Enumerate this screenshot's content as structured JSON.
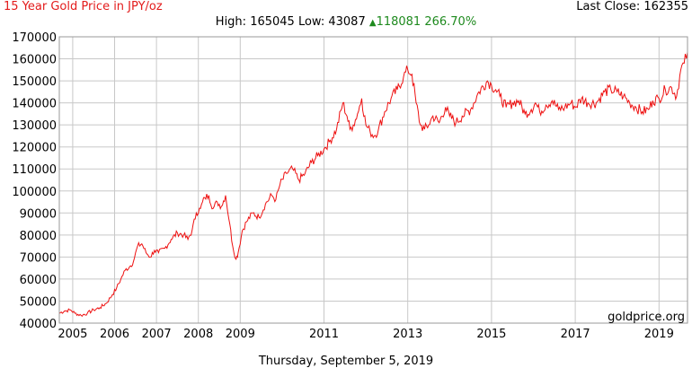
{
  "header": {
    "title": "15 Year Gold Price in JPY/oz",
    "last_close": "Last Close: 162355",
    "high": "High: 165045",
    "low": "Low: 43087",
    "change_arrow": "▲",
    "change": "118081 266.70%"
  },
  "watermark": "goldprice.org",
  "footer_date": "Thursday, September 5, 2019",
  "colors": {
    "title": "#e31b1b",
    "line": "#ee1111",
    "change": "#1e8a1e",
    "grid": "#c8c8c8"
  },
  "chart_data": {
    "type": "line",
    "title": "15 Year Gold Price in JPY/oz",
    "xlabel": "",
    "ylabel": "",
    "xlim": [
      2004.68,
      2019.68
    ],
    "ylim": [
      40000,
      170000
    ],
    "grid": true,
    "yticks": [
      40000,
      50000,
      60000,
      70000,
      80000,
      90000,
      100000,
      110000,
      120000,
      130000,
      140000,
      150000,
      160000,
      170000
    ],
    "xticks": [
      2005,
      2006,
      2007,
      2008,
      2009,
      2011,
      2013,
      2015,
      2017,
      2019
    ],
    "xtick_labels": [
      "2005",
      "2006",
      "2007",
      "2008",
      "2009",
      "2011",
      "2013",
      "2015",
      "2017",
      "2019"
    ],
    "series": [
      {
        "name": "",
        "x": [
          2004.68,
          2004.8,
          2004.95,
          2005.05,
          2005.2,
          2005.35,
          2005.5,
          2005.65,
          2005.8,
          2005.95,
          2006.05,
          2006.15,
          2006.25,
          2006.38,
          2006.45,
          2006.55,
          2006.65,
          2006.75,
          2006.85,
          2006.95,
          2007.05,
          2007.2,
          2007.35,
          2007.5,
          2007.65,
          2007.75,
          2007.85,
          2007.95,
          2008.05,
          2008.15,
          2008.25,
          2008.35,
          2008.45,
          2008.55,
          2008.65,
          2008.75,
          2008.82,
          2008.9,
          2008.95,
          2009.05,
          2009.15,
          2009.3,
          2009.45,
          2009.6,
          2009.75,
          2009.85,
          2009.95,
          2010.1,
          2010.25,
          2010.4,
          2010.55,
          2010.7,
          2010.85,
          2011.0,
          2011.15,
          2011.3,
          2011.45,
          2011.55,
          2011.62,
          2011.7,
          2011.8,
          2011.9,
          2012.0,
          2012.1,
          2012.2,
          2012.3,
          2012.45,
          2012.6,
          2012.75,
          2012.9,
          2013.0,
          2013.1,
          2013.2,
          2013.3,
          2013.4,
          2013.5,
          2013.6,
          2013.75,
          2013.9,
          2014.0,
          2014.15,
          2014.3,
          2014.5,
          2014.7,
          2014.9,
          2015.0,
          2015.1,
          2015.2,
          2015.35,
          2015.5,
          2015.65,
          2015.8,
          2015.95,
          2016.05,
          2016.15,
          2016.3,
          2016.45,
          2016.6,
          2016.75,
          2016.9,
          2017.0,
          2017.15,
          2017.3,
          2017.5,
          2017.7,
          2017.85,
          2018.0,
          2018.15,
          2018.3,
          2018.45,
          2018.6,
          2018.75,
          2018.85,
          2019.0,
          2019.15,
          2019.3,
          2019.42,
          2019.52,
          2019.6,
          2019.68
        ],
        "values": [
          44500,
          45500,
          46000,
          44500,
          43500,
          44500,
          46000,
          47000,
          49000,
          53000,
          56000,
          60000,
          64000,
          66000,
          68000,
          75000,
          76000,
          72000,
          70000,
          73000,
          72000,
          74000,
          78000,
          81000,
          80000,
          78000,
          82000,
          90000,
          92000,
          97000,
          98000,
          92000,
          95000,
          93000,
          98000,
          85000,
          75000,
          69000,
          72000,
          82000,
          86000,
          90000,
          88000,
          94000,
          98000,
          96000,
          103000,
          108000,
          110000,
          105000,
          108000,
          113000,
          116000,
          119000,
          123000,
          128000,
          140000,
          134000,
          128000,
          130000,
          135000,
          142000,
          130000,
          127000,
          125000,
          128000,
          136000,
          142000,
          146000,
          152000,
          155000,
          153000,
          140000,
          130000,
          128000,
          130000,
          134000,
          131000,
          138000,
          134000,
          131000,
          134000,
          137000,
          145000,
          150000,
          148000,
          146000,
          143000,
          138000,
          140000,
          141000,
          135000,
          137000,
          140000,
          136000,
          139000,
          141000,
          137000,
          138000,
          140000,
          138000,
          142000,
          140000,
          140000,
          145000,
          146000,
          145000,
          143000,
          140000,
          138000,
          136000,
          137000,
          141000,
          142000,
          146000,
          147000,
          143000,
          155000,
          158000,
          163000
        ]
      }
    ]
  }
}
